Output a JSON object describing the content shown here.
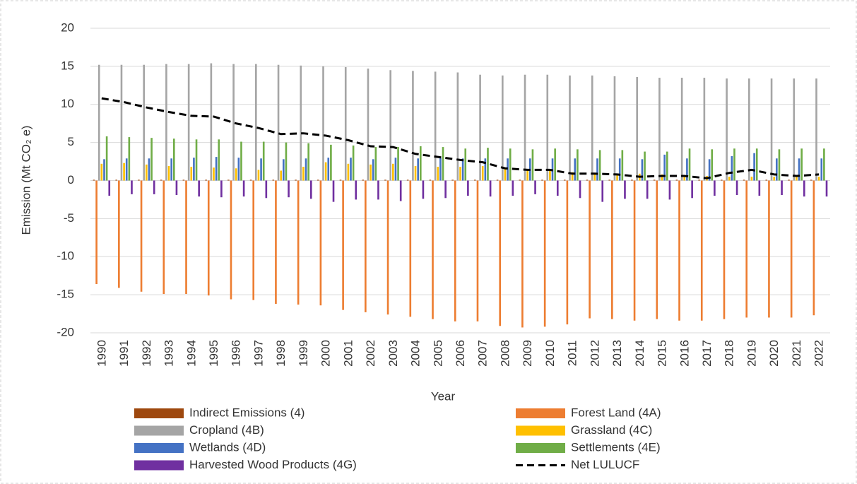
{
  "chart_data": {
    "type": "bar",
    "y_label": "Emission (Mt CO₂ e)",
    "x_label": "Year",
    "categories": [
      "1990",
      "1991",
      "1992",
      "1993",
      "1994",
      "1995",
      "1996",
      "1997",
      "1998",
      "1999",
      "2000",
      "2001",
      "2002",
      "2003",
      "2004",
      "2005",
      "2006",
      "2007",
      "2008",
      "2009",
      "2010",
      "2011",
      "2012",
      "2013",
      "2014",
      "2015",
      "2016",
      "2017",
      "2018",
      "2019",
      "2020",
      "2021",
      "2022"
    ],
    "ylim": [
      -20,
      20
    ],
    "yticks": [
      -20,
      -15,
      -10,
      -5,
      0,
      5,
      10,
      15,
      20
    ],
    "grid": true,
    "series": [
      {
        "name": "Indirect Emissions (4)",
        "type": "bar",
        "color": "#9e480e",
        "values": [
          0.1,
          0.1,
          0.1,
          0.1,
          0.1,
          0.1,
          0.1,
          0.1,
          0.1,
          0.1,
          0.1,
          0.1,
          0.1,
          0.1,
          0.1,
          0.1,
          0.1,
          0.1,
          0.1,
          0.1,
          0.1,
          0.1,
          0.1,
          0.1,
          0.1,
          0.1,
          0.1,
          0.1,
          0.1,
          0.1,
          0.1,
          0.1,
          0.1
        ]
      },
      {
        "name": "Forest Land (4A)",
        "type": "bar",
        "color": "#ed7d31",
        "values": [
          -13.6,
          -14.1,
          -14.6,
          -14.9,
          -14.9,
          -15.1,
          -15.6,
          -15.7,
          -16.2,
          -16.3,
          -16.4,
          -17.0,
          -17.3,
          -17.6,
          -17.9,
          -18.2,
          -18.5,
          -18.5,
          -19.1,
          -19.3,
          -19.2,
          -18.9,
          -18.1,
          -18.2,
          -18.4,
          -18.2,
          -18.4,
          -18.4,
          -18.2,
          -18.0,
          -18.0,
          -18.0,
          -17.7
        ]
      },
      {
        "name": "Cropland (4B)",
        "type": "bar",
        "color": "#a5a5a5",
        "values": [
          15.2,
          15.2,
          15.2,
          15.3,
          15.3,
          15.4,
          15.3,
          15.3,
          15.2,
          15.1,
          15.0,
          14.9,
          14.7,
          14.5,
          14.4,
          14.3,
          14.2,
          13.9,
          13.8,
          13.9,
          13.9,
          13.8,
          13.8,
          13.7,
          13.6,
          13.5,
          13.5,
          13.5,
          13.4,
          13.4,
          13.4,
          13.4,
          13.4
        ]
      },
      {
        "name": "Grassland (4C)",
        "type": "bar",
        "color": "#ffc000",
        "values": [
          2.2,
          2.3,
          2.1,
          1.9,
          1.8,
          1.7,
          1.6,
          1.4,
          1.3,
          1.8,
          2.4,
          2.2,
          2.1,
          2.2,
          1.9,
          1.8,
          1.8,
          1.9,
          1.6,
          1.5,
          1.3,
          1.1,
          1.0,
          0.9,
          0.9,
          0.8,
          0.7,
          0.6,
          0.5,
          0.5,
          0.5,
          0.5,
          0.5
        ]
      },
      {
        "name": "Wetlands (4D)",
        "type": "bar",
        "color": "#4472c4",
        "values": [
          2.8,
          2.9,
          2.9,
          2.9,
          3.0,
          3.1,
          3.0,
          2.9,
          2.8,
          2.9,
          3.0,
          3.0,
          2.8,
          3.0,
          2.9,
          3.0,
          2.9,
          2.9,
          2.9,
          2.9,
          2.9,
          2.9,
          2.9,
          2.9,
          2.8,
          3.4,
          2.9,
          2.8,
          3.2,
          3.6,
          2.9,
          2.9,
          2.9
        ]
      },
      {
        "name": "Settlements (4E)",
        "type": "bar",
        "color": "#70ad47",
        "values": [
          5.8,
          5.7,
          5.6,
          5.5,
          5.4,
          5.4,
          5.1,
          5.1,
          5.0,
          4.9,
          4.7,
          4.6,
          4.4,
          4.4,
          4.5,
          4.4,
          4.2,
          4.3,
          4.2,
          4.1,
          4.2,
          4.1,
          4.0,
          4.0,
          3.8,
          3.8,
          4.2,
          4.1,
          4.2,
          4.2,
          4.1,
          4.2,
          4.2
        ]
      },
      {
        "name": "Harvested Wood Products (4G)",
        "type": "bar",
        "color": "#7030a0",
        "values": [
          -2.0,
          -1.8,
          -1.8,
          -1.9,
          -2.1,
          -2.2,
          -2.1,
          -2.3,
          -2.2,
          -2.4,
          -2.8,
          -2.5,
          -2.5,
          -2.7,
          -2.4,
          -2.3,
          -2.0,
          -2.1,
          -2.0,
          -1.8,
          -2.0,
          -2.3,
          -2.8,
          -2.4,
          -2.4,
          -2.5,
          -2.3,
          -2.0,
          -1.9,
          -2.0,
          -1.9,
          -2.1,
          -2.1
        ]
      },
      {
        "name": "Net LULUCF",
        "type": "line",
        "dashed": true,
        "color": "#000000",
        "values": [
          10.8,
          10.3,
          9.6,
          9.0,
          8.5,
          8.4,
          7.5,
          6.9,
          6.1,
          6.2,
          5.9,
          5.3,
          4.5,
          4.4,
          3.5,
          3.1,
          2.7,
          2.4,
          1.6,
          1.4,
          1.4,
          0.9,
          0.9,
          0.8,
          0.5,
          0.6,
          0.6,
          0.3,
          1.0,
          1.4,
          0.8,
          0.6,
          0.8
        ]
      }
    ]
  }
}
